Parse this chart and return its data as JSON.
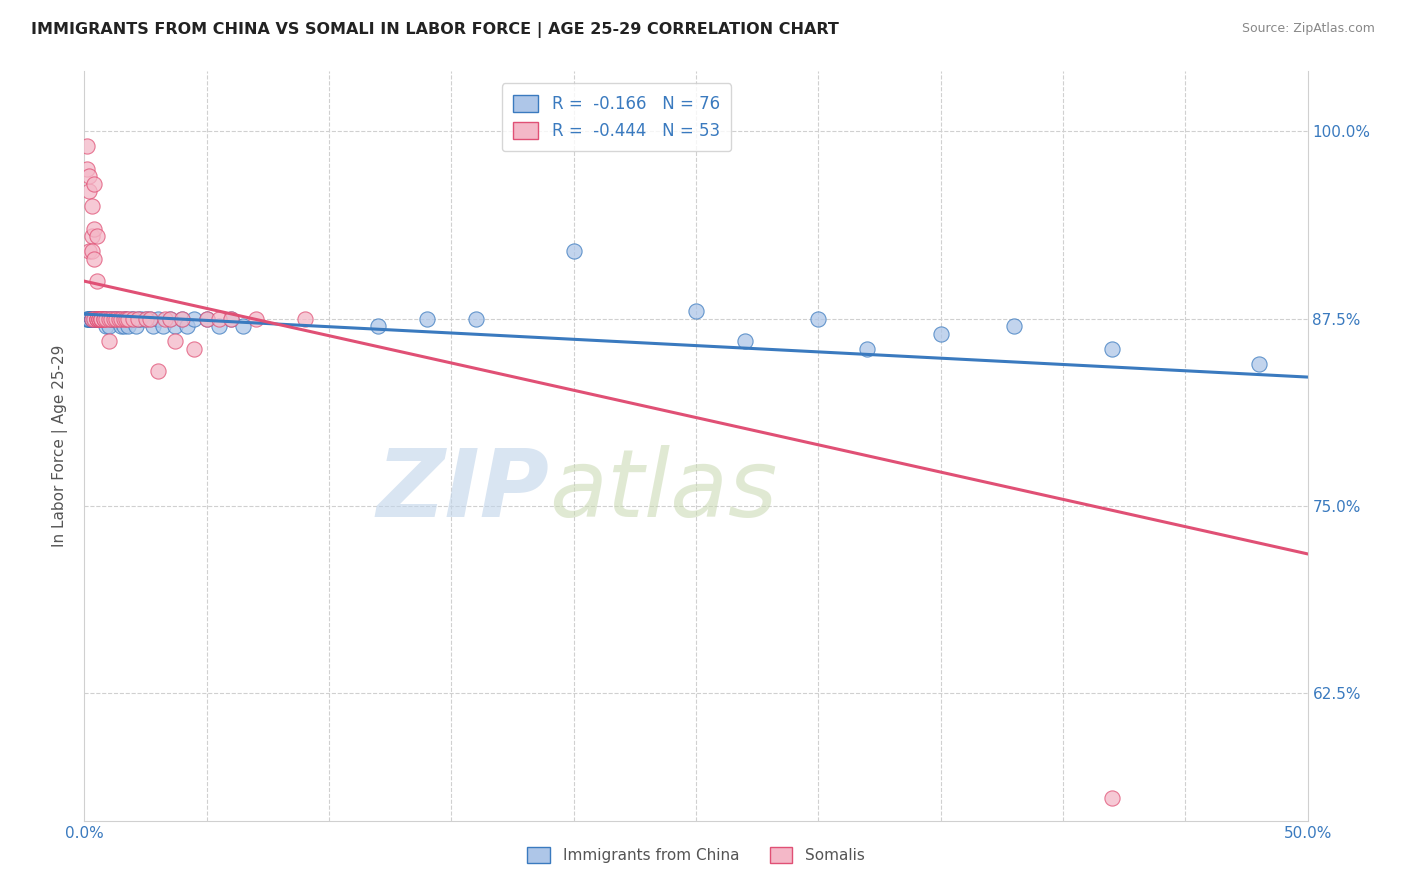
{
  "title": "IMMIGRANTS FROM CHINA VS SOMALI IN LABOR FORCE | AGE 25-29 CORRELATION CHART",
  "source": "Source: ZipAtlas.com",
  "ylabel": "In Labor Force | Age 25-29",
  "ytick_labels": [
    "62.5%",
    "75.0%",
    "87.5%",
    "100.0%"
  ],
  "ytick_values": [
    0.625,
    0.75,
    0.875,
    1.0
  ],
  "xmin": 0.0,
  "xmax": 0.5,
  "ymin": 0.54,
  "ymax": 1.04,
  "legend_r_china": "-0.166",
  "legend_n_china": "76",
  "legend_r_somali": "-0.444",
  "legend_n_somali": "53",
  "color_china": "#aec6e8",
  "color_somali": "#f4b8c8",
  "line_color_china": "#3a7abf",
  "line_color_somali": "#e05075",
  "watermark": "ZIPatlas",
  "watermark_color_zip": "#c0d4ea",
  "watermark_color_atlas": "#c8d8b0",
  "china_trend_x0": 0.0,
  "china_trend_y0": 0.878,
  "china_trend_x1": 0.5,
  "china_trend_y1": 0.836,
  "somali_trend_x0": 0.0,
  "somali_trend_y0": 0.9,
  "somali_trend_x1": 0.5,
  "somali_trend_y1": 0.718,
  "china_x": [
    0.001,
    0.001,
    0.002,
    0.002,
    0.002,
    0.002,
    0.003,
    0.003,
    0.003,
    0.003,
    0.003,
    0.003,
    0.004,
    0.004,
    0.004,
    0.004,
    0.004,
    0.004,
    0.004,
    0.005,
    0.005,
    0.005,
    0.005,
    0.006,
    0.006,
    0.006,
    0.006,
    0.007,
    0.007,
    0.007,
    0.008,
    0.008,
    0.009,
    0.009,
    0.01,
    0.01,
    0.011,
    0.012,
    0.013,
    0.014,
    0.015,
    0.016,
    0.016,
    0.017,
    0.018,
    0.019,
    0.02,
    0.021,
    0.022,
    0.023,
    0.025,
    0.027,
    0.028,
    0.03,
    0.032,
    0.035,
    0.037,
    0.04,
    0.042,
    0.045,
    0.05,
    0.055,
    0.06,
    0.065,
    0.12,
    0.14,
    0.16,
    0.2,
    0.25,
    0.27,
    0.3,
    0.32,
    0.35,
    0.38,
    0.42,
    0.48
  ],
  "china_y": [
    0.875,
    0.875,
    0.875,
    0.875,
    0.875,
    0.875,
    0.875,
    0.875,
    0.875,
    0.875,
    0.875,
    0.875,
    0.875,
    0.875,
    0.875,
    0.875,
    0.875,
    0.875,
    0.875,
    0.875,
    0.875,
    0.875,
    0.875,
    0.875,
    0.875,
    0.875,
    0.875,
    0.875,
    0.875,
    0.875,
    0.875,
    0.875,
    0.87,
    0.875,
    0.875,
    0.87,
    0.875,
    0.875,
    0.875,
    0.875,
    0.87,
    0.875,
    0.87,
    0.875,
    0.87,
    0.875,
    0.875,
    0.87,
    0.875,
    0.875,
    0.875,
    0.875,
    0.87,
    0.875,
    0.87,
    0.875,
    0.87,
    0.875,
    0.87,
    0.875,
    0.875,
    0.87,
    0.875,
    0.87,
    0.87,
    0.875,
    0.875,
    0.92,
    0.88,
    0.86,
    0.875,
    0.855,
    0.865,
    0.87,
    0.855,
    0.845
  ],
  "somali_x": [
    0.001,
    0.001,
    0.002,
    0.002,
    0.002,
    0.003,
    0.003,
    0.003,
    0.003,
    0.004,
    0.004,
    0.004,
    0.004,
    0.005,
    0.005,
    0.005,
    0.005,
    0.005,
    0.006,
    0.006,
    0.006,
    0.007,
    0.007,
    0.007,
    0.008,
    0.008,
    0.009,
    0.01,
    0.01,
    0.011,
    0.012,
    0.013,
    0.014,
    0.015,
    0.016,
    0.017,
    0.018,
    0.02,
    0.022,
    0.025,
    0.027,
    0.03,
    0.033,
    0.035,
    0.037,
    0.04,
    0.045,
    0.05,
    0.055,
    0.06,
    0.07,
    0.09,
    0.42
  ],
  "somali_y": [
    0.99,
    0.975,
    0.96,
    0.92,
    0.97,
    0.95,
    0.93,
    0.92,
    0.875,
    0.965,
    0.935,
    0.915,
    0.875,
    0.875,
    0.93,
    0.9,
    0.875,
    0.875,
    0.875,
    0.875,
    0.875,
    0.875,
    0.875,
    0.875,
    0.875,
    0.875,
    0.875,
    0.875,
    0.86,
    0.875,
    0.875,
    0.875,
    0.875,
    0.875,
    0.875,
    0.875,
    0.875,
    0.875,
    0.875,
    0.875,
    0.875,
    0.84,
    0.875,
    0.875,
    0.86,
    0.875,
    0.855,
    0.875,
    0.875,
    0.875,
    0.875,
    0.875,
    0.555
  ],
  "dot_size": 120
}
